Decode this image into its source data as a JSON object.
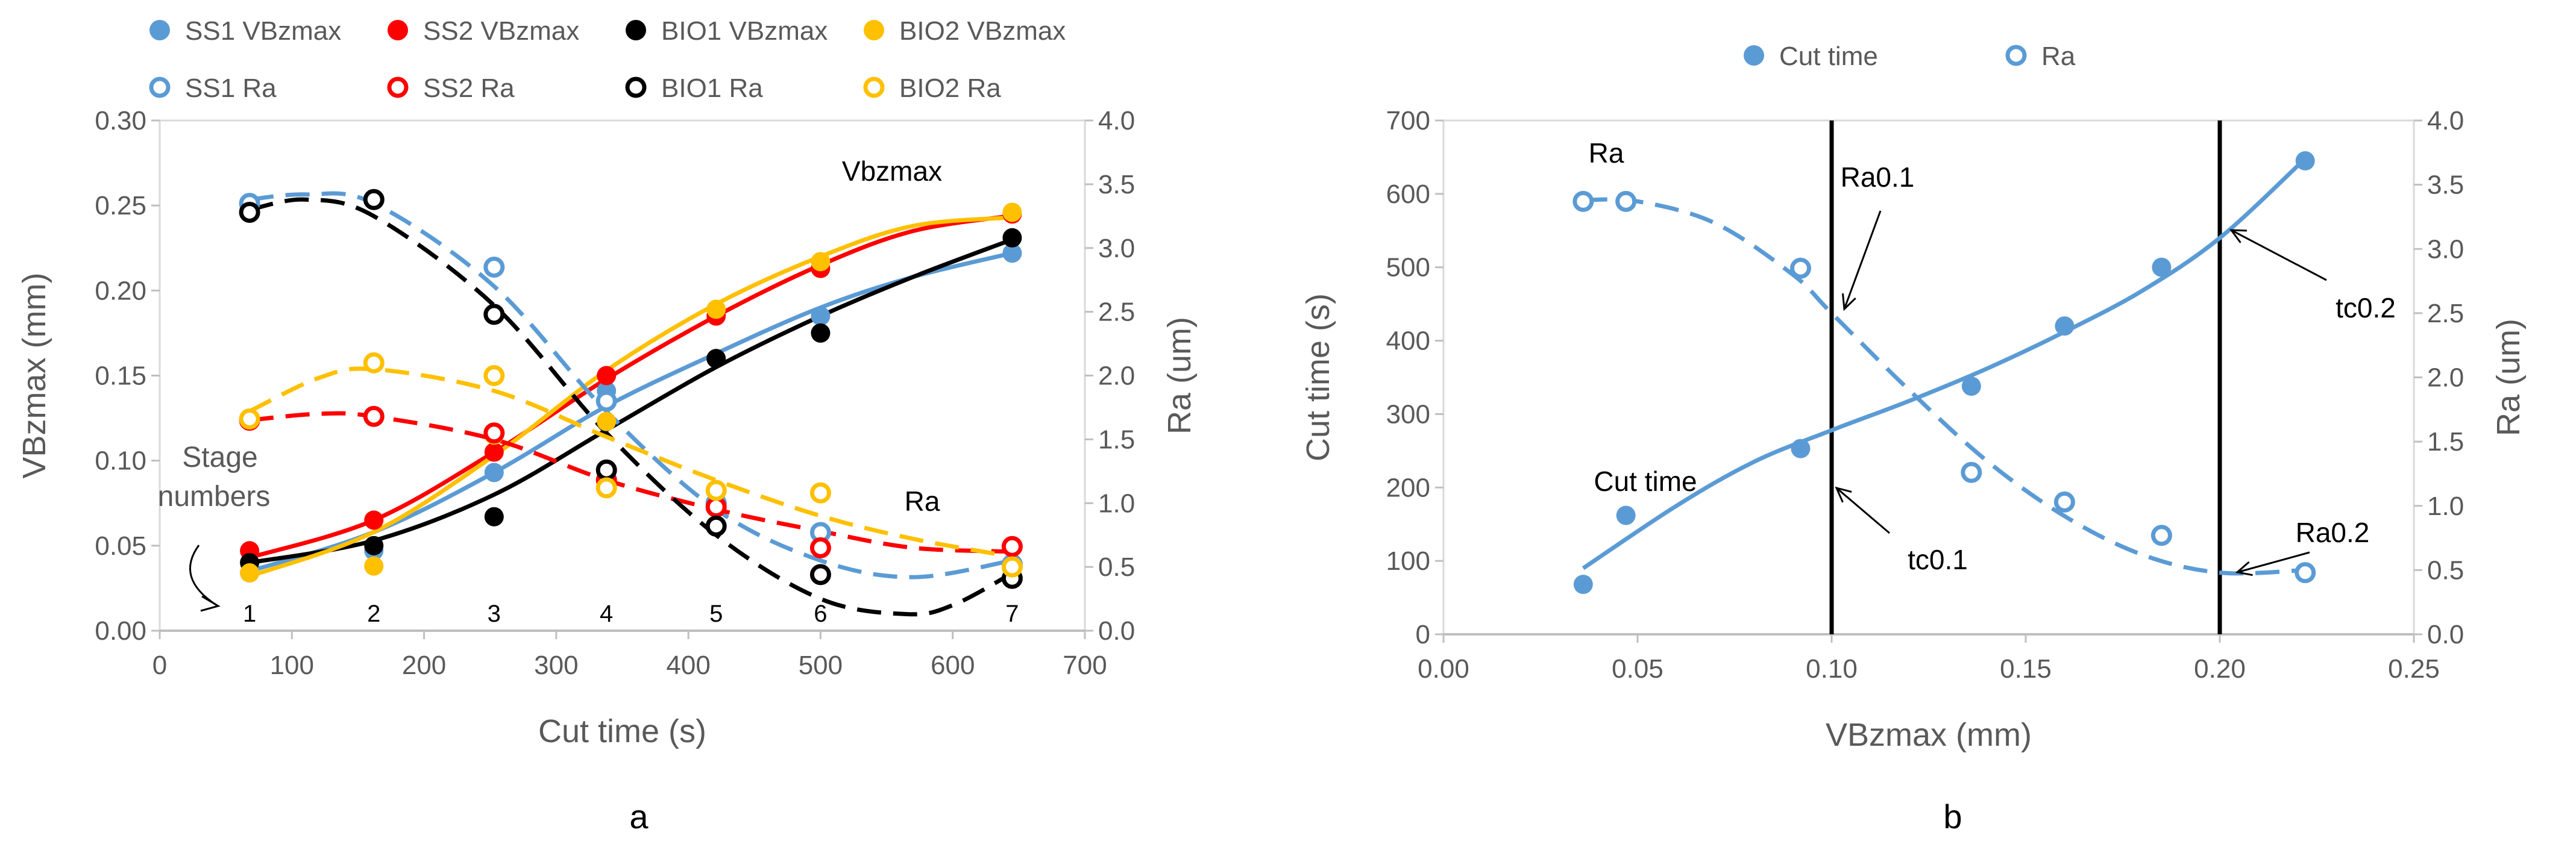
{
  "panels": [
    "a",
    "b"
  ],
  "chart_data": [
    {
      "type": "scatter",
      "panel_label": "a",
      "xlabel": "Cut time (s)",
      "ylabel": "VBzmax (mm)",
      "y2label": "Ra (um)",
      "xlim": [
        0,
        700
      ],
      "ylim": [
        0,
        0.3
      ],
      "y2lim": [
        0,
        4
      ],
      "x_ticks": [
        "0",
        "100",
        "200",
        "300",
        "400",
        "500",
        "600",
        "700"
      ],
      "y_ticks": [
        "0.00",
        "0.05",
        "0.10",
        "0.15",
        "0.20",
        "0.25",
        "0.30"
      ],
      "y2_ticks": [
        "0.0",
        "0.5",
        "1.0",
        "1.5",
        "2.0",
        "2.5",
        "3.0",
        "3.5",
        "4.0"
      ],
      "legend": {
        "position": "top",
        "entries": [
          "SS1 VBzmax",
          "SS2 VBzmax",
          "BIO1 VBzmax",
          "BIO2 VBzmax",
          "SS1 Ra",
          "SS2 Ra",
          "BIO1 Ra",
          "BIO2 Ra"
        ]
      },
      "annotations": {
        "vbz": "Vbzmax",
        "ra": "Ra",
        "stage_line1": "Stage",
        "stage_line2": "numbers",
        "stages": [
          "1",
          "2",
          "3",
          "4",
          "5",
          "6",
          "7"
        ],
        "stage_x": [
          68,
          162,
          253,
          338,
          421,
          500,
          645
        ]
      },
      "colors": {
        "SS1": "#5b9bd5",
        "SS2": "#ff0000",
        "BIO1": "#000000",
        "BIO2": "#ffc000"
      },
      "series": [
        {
          "name": "SS1 VBzmax",
          "color": "#5b9bd5",
          "axis": "left",
          "marker": "filled",
          "x": [
            68,
            162,
            253,
            338,
            421,
            500,
            645
          ],
          "values": [
            0.034,
            0.047,
            0.093,
            0.141,
            0.16,
            0.185,
            0.222
          ],
          "fit_x": [
            68,
            645
          ],
          "fit_y": [
            0.036,
            0.224
          ],
          "fit_kind": "cubic",
          "fit_style": "solid",
          "fit_pts": [
            [
              68,
              0.035
            ],
            [
              162,
              0.058
            ],
            [
              253,
              0.093
            ],
            [
              338,
              0.132
            ],
            [
              421,
              0.163
            ],
            [
              500,
              0.19
            ],
            [
              570,
              0.208
            ],
            [
              645,
              0.222
            ]
          ]
        },
        {
          "name": "SS2 VBzmax",
          "color": "#ff0000",
          "axis": "left",
          "marker": "filled",
          "x": [
            68,
            162,
            253,
            338,
            421,
            500,
            645
          ],
          "values": [
            0.047,
            0.065,
            0.105,
            0.15,
            0.185,
            0.213,
            0.245
          ],
          "fit_kind": "points",
          "fit_style": "solid",
          "fit_pts": [
            [
              68,
              0.043
            ],
            [
              162,
              0.065
            ],
            [
              253,
              0.105
            ],
            [
              338,
              0.148
            ],
            [
              421,
              0.185
            ],
            [
              500,
              0.215
            ],
            [
              570,
              0.235
            ],
            [
              645,
              0.244
            ]
          ]
        },
        {
          "name": "BIO1 VBzmax",
          "color": "#000000",
          "axis": "left",
          "marker": "filled",
          "x": [
            68,
            162,
            253,
            338,
            421,
            500,
            645
          ],
          "values": [
            0.04,
            0.05,
            0.067,
            0.093,
            0.16,
            0.175,
            0.231
          ],
          "fit_kind": "points",
          "fit_style": "solid",
          "fit_pts": [
            [
              68,
              0.04
            ],
            [
              162,
              0.053
            ],
            [
              253,
              0.08
            ],
            [
              338,
              0.118
            ],
            [
              421,
              0.155
            ],
            [
              500,
              0.185
            ],
            [
              570,
              0.208
            ],
            [
              645,
              0.23
            ]
          ]
        },
        {
          "name": "BIO2 VBzmax",
          "color": "#ffc000",
          "axis": "left",
          "marker": "filled",
          "x": [
            68,
            162,
            253,
            338,
            421,
            500,
            645
          ],
          "values": [
            0.034,
            0.038,
            0.115,
            0.123,
            0.189,
            0.217,
            0.246
          ],
          "fit_kind": "points",
          "fit_style": "solid",
          "fit_pts": [
            [
              68,
              0.032
            ],
            [
              162,
              0.058
            ],
            [
              253,
              0.103
            ],
            [
              338,
              0.153
            ],
            [
              421,
              0.192
            ],
            [
              500,
              0.22
            ],
            [
              570,
              0.238
            ],
            [
              645,
              0.243
            ]
          ]
        },
        {
          "name": "SS1 Ra",
          "color": "#5b9bd5",
          "axis": "right",
          "marker": "open",
          "x": [
            68,
            162,
            253,
            338,
            421,
            500,
            645
          ],
          "values": [
            3.35,
            3.38,
            2.85,
            1.8,
            1.0,
            0.77,
            0.52
          ],
          "fit_kind": "points",
          "fit_style": "dashed",
          "fit_pts": [
            [
              68,
              3.38
            ],
            [
              110,
              3.42
            ],
            [
              162,
              3.35
            ],
            [
              253,
              2.7
            ],
            [
              338,
              1.72
            ],
            [
              421,
              0.95
            ],
            [
              500,
              0.55
            ],
            [
              570,
              0.42
            ],
            [
              645,
              0.55
            ]
          ]
        },
        {
          "name": "SS2 Ra",
          "color": "#ff0000",
          "axis": "right",
          "marker": "open",
          "x": [
            68,
            162,
            253,
            338,
            421,
            500,
            645
          ],
          "values": [
            1.65,
            1.68,
            1.55,
            1.18,
            0.97,
            0.65,
            0.66
          ],
          "fit_kind": "points",
          "fit_style": "dashed",
          "fit_pts": [
            [
              68,
              1.65
            ],
            [
              120,
              1.7
            ],
            [
              162,
              1.68
            ],
            [
              253,
              1.5
            ],
            [
              338,
              1.18
            ],
            [
              421,
              0.95
            ],
            [
              500,
              0.78
            ],
            [
              570,
              0.65
            ],
            [
              645,
              0.62
            ]
          ]
        },
        {
          "name": "BIO1 Ra",
          "color": "#000000",
          "axis": "right",
          "marker": "open",
          "x": [
            68,
            162,
            253,
            338,
            421,
            500,
            645
          ],
          "values": [
            3.28,
            3.38,
            2.48,
            1.26,
            0.82,
            0.44,
            0.41
          ],
          "fit_kind": "points",
          "fit_style": "dashed",
          "fit_pts": [
            [
              68,
              3.3
            ],
            [
              110,
              3.38
            ],
            [
              162,
              3.25
            ],
            [
              253,
              2.55
            ],
            [
              338,
              1.55
            ],
            [
              421,
              0.75
            ],
            [
              500,
              0.25
            ],
            [
              565,
              0.13
            ],
            [
              600,
              0.2
            ],
            [
              645,
              0.45
            ]
          ]
        },
        {
          "name": "BIO2 Ra",
          "color": "#ffc000",
          "axis": "right",
          "marker": "open",
          "x": [
            68,
            162,
            253,
            338,
            421,
            500,
            645
          ],
          "values": [
            1.66,
            2.1,
            2.0,
            1.12,
            1.1,
            1.08,
            0.5
          ],
          "fit_kind": "points",
          "fit_style": "dashed",
          "fit_pts": [
            [
              68,
              1.72
            ],
            [
              120,
              1.98
            ],
            [
              162,
              2.05
            ],
            [
              253,
              1.88
            ],
            [
              338,
              1.52
            ],
            [
              421,
              1.18
            ],
            [
              500,
              0.9
            ],
            [
              570,
              0.72
            ],
            [
              645,
              0.58
            ]
          ]
        }
      ]
    },
    {
      "type": "scatter",
      "panel_label": "b",
      "xlabel": "VBzmax (mm)",
      "ylabel": "Cut time (s)",
      "y2label": "Ra (um)",
      "xlim": [
        0,
        0.25
      ],
      "ylim": [
        0,
        700
      ],
      "y2lim": [
        0,
        4
      ],
      "x_ticks": [
        "0.00",
        "0.05",
        "0.10",
        "0.15",
        "0.20",
        "0.25"
      ],
      "y_ticks": [
        "0",
        "100",
        "200",
        "300",
        "400",
        "500",
        "600",
        "700"
      ],
      "y2_ticks": [
        "0.0",
        "0.5",
        "1.0",
        "1.5",
        "2.0",
        "2.5",
        "3.0",
        "3.5",
        "4.0"
      ],
      "legend": {
        "position": "top",
        "entries": [
          "Cut time",
          "Ra"
        ]
      },
      "vlines": [
        0.1,
        0.2
      ],
      "annotations": {
        "ra": "Ra",
        "cut_time": "Cut time",
        "ra01": "Ra0.1",
        "tc01": "tc0.1",
        "tc02": "tc0.2",
        "ra02": "Ra0.2"
      },
      "series": [
        {
          "name": "Cut time",
          "color": "#5b9bd5",
          "axis": "left",
          "marker": "filled",
          "x": [
            0.036,
            0.047,
            0.092,
            0.136,
            0.16,
            0.185,
            0.222
          ],
          "values": [
            68,
            162,
            253,
            338,
            420,
            500,
            645
          ],
          "fit_style": "solid",
          "fit_pts": [
            [
              0.036,
              90
            ],
            [
              0.06,
              175
            ],
            [
              0.08,
              235
            ],
            [
              0.1,
              278
            ],
            [
              0.12,
              318
            ],
            [
              0.14,
              362
            ],
            [
              0.16,
              412
            ],
            [
              0.18,
              468
            ],
            [
              0.2,
              540
            ],
            [
              0.222,
              648
            ]
          ]
        },
        {
          "name": "Ra",
          "color": "#5b9bd5",
          "axis": "right",
          "marker": "open",
          "x": [
            0.036,
            0.047,
            0.092,
            0.136,
            0.16,
            0.185,
            0.222
          ],
          "values": [
            3.37,
            3.37,
            2.85,
            1.26,
            1.03,
            0.77,
            0.48
          ],
          "fit_style": "dashed",
          "fit_pts": [
            [
              0.036,
              3.38
            ],
            [
              0.05,
              3.37
            ],
            [
              0.07,
              3.2
            ],
            [
              0.09,
              2.8
            ],
            [
              0.1,
              2.5
            ],
            [
              0.12,
              1.9
            ],
            [
              0.14,
              1.35
            ],
            [
              0.16,
              0.92
            ],
            [
              0.18,
              0.62
            ],
            [
              0.2,
              0.48
            ],
            [
              0.222,
              0.5
            ]
          ]
        }
      ]
    }
  ]
}
